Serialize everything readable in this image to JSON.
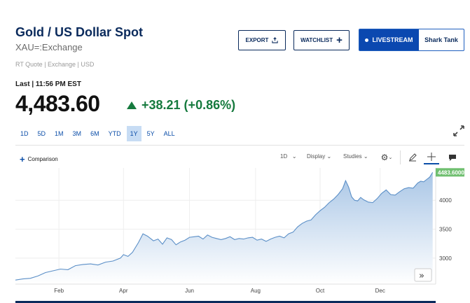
{
  "header": {
    "title": "Gold / US Dollar Spot",
    "subtitle": "XAU=:Exchange",
    "meta": "RT Quote | Exchange | USD"
  },
  "actions": {
    "export_label": "EXPORT",
    "watchlist_label": "WATCHLIST",
    "livestream_label": "LIVESTREAM",
    "show_label": "Shark Tank"
  },
  "quote": {
    "last_label": "Last | 11:56 PM EST",
    "price": "4,483.60",
    "change": "+38.21 (+0.86%)",
    "change_color": "#167a3e"
  },
  "ranges": [
    {
      "label": "1D",
      "active": false
    },
    {
      "label": "5D",
      "active": false
    },
    {
      "label": "1M",
      "active": false
    },
    {
      "label": "3M",
      "active": false
    },
    {
      "label": "6M",
      "active": false
    },
    {
      "label": "YTD",
      "active": false
    },
    {
      "label": "1Y",
      "active": true
    },
    {
      "label": "5Y",
      "active": false
    },
    {
      "label": "ALL",
      "active": false
    }
  ],
  "toolbar": {
    "comparison_label": "Comparison",
    "interval_label": "1D",
    "display_label": "Display",
    "studies_label": "Studies"
  },
  "chart_data": {
    "type": "area",
    "x_labels": [
      "Feb",
      "Apr",
      "Jun",
      "Aug",
      "Oct",
      "Dec"
    ],
    "y_ticks": [
      3000,
      3500,
      4000
    ],
    "ylim": [
      2550,
      4560
    ],
    "last_value_label": "4483.6000",
    "last_value": 4483.6,
    "line_color": "#5b8fc7",
    "fill_top": "#a9c6e6",
    "fill_bottom": "#ffffff",
    "badge_color": "#6fbf6f",
    "series": [
      {
        "x": 0,
        "y": 2620
      },
      {
        "x": 5,
        "y": 2640
      },
      {
        "x": 10,
        "y": 2650
      },
      {
        "x": 15,
        "y": 2690
      },
      {
        "x": 20,
        "y": 2750
      },
      {
        "x": 25,
        "y": 2780
      },
      {
        "x": 30,
        "y": 2810
      },
      {
        "x": 35,
        "y": 2800
      },
      {
        "x": 40,
        "y": 2870
      },
      {
        "x": 45,
        "y": 2890
      },
      {
        "x": 50,
        "y": 2900
      },
      {
        "x": 55,
        "y": 2880
      },
      {
        "x": 60,
        "y": 2930
      },
      {
        "x": 65,
        "y": 2950
      },
      {
        "x": 70,
        "y": 3000
      },
      {
        "x": 72,
        "y": 3060
      },
      {
        "x": 75,
        "y": 3030
      },
      {
        "x": 78,
        "y": 3100
      },
      {
        "x": 82,
        "y": 3270
      },
      {
        "x": 85,
        "y": 3420
      },
      {
        "x": 88,
        "y": 3380
      },
      {
        "x": 92,
        "y": 3300
      },
      {
        "x": 95,
        "y": 3330
      },
      {
        "x": 98,
        "y": 3240
      },
      {
        "x": 101,
        "y": 3350
      },
      {
        "x": 104,
        "y": 3320
      },
      {
        "x": 107,
        "y": 3230
      },
      {
        "x": 110,
        "y": 3280
      },
      {
        "x": 113,
        "y": 3310
      },
      {
        "x": 116,
        "y": 3360
      },
      {
        "x": 119,
        "y": 3370
      },
      {
        "x": 122,
        "y": 3380
      },
      {
        "x": 125,
        "y": 3330
      },
      {
        "x": 128,
        "y": 3400
      },
      {
        "x": 131,
        "y": 3360
      },
      {
        "x": 134,
        "y": 3340
      },
      {
        "x": 137,
        "y": 3320
      },
      {
        "x": 140,
        "y": 3340
      },
      {
        "x": 143,
        "y": 3370
      },
      {
        "x": 146,
        "y": 3320
      },
      {
        "x": 149,
        "y": 3340
      },
      {
        "x": 152,
        "y": 3330
      },
      {
        "x": 155,
        "y": 3350
      },
      {
        "x": 158,
        "y": 3360
      },
      {
        "x": 161,
        "y": 3310
      },
      {
        "x": 164,
        "y": 3330
      },
      {
        "x": 167,
        "y": 3290
      },
      {
        "x": 170,
        "y": 3330
      },
      {
        "x": 173,
        "y": 3360
      },
      {
        "x": 176,
        "y": 3380
      },
      {
        "x": 179,
        "y": 3350
      },
      {
        "x": 182,
        "y": 3420
      },
      {
        "x": 185,
        "y": 3450
      },
      {
        "x": 188,
        "y": 3540
      },
      {
        "x": 191,
        "y": 3600
      },
      {
        "x": 194,
        "y": 3640
      },
      {
        "x": 197,
        "y": 3660
      },
      {
        "x": 200,
        "y": 3750
      },
      {
        "x": 203,
        "y": 3820
      },
      {
        "x": 206,
        "y": 3880
      },
      {
        "x": 209,
        "y": 3960
      },
      {
        "x": 212,
        "y": 4020
      },
      {
        "x": 215,
        "y": 4100
      },
      {
        "x": 218,
        "y": 4200
      },
      {
        "x": 220,
        "y": 4340
      },
      {
        "x": 222,
        "y": 4230
      },
      {
        "x": 224,
        "y": 4060
      },
      {
        "x": 226,
        "y": 4000
      },
      {
        "x": 228,
        "y": 3990
      },
      {
        "x": 230,
        "y": 4050
      },
      {
        "x": 232,
        "y": 4010
      },
      {
        "x": 235,
        "y": 3970
      },
      {
        "x": 238,
        "y": 3960
      },
      {
        "x": 241,
        "y": 4030
      },
      {
        "x": 244,
        "y": 4120
      },
      {
        "x": 247,
        "y": 4180
      },
      {
        "x": 250,
        "y": 4100
      },
      {
        "x": 253,
        "y": 4090
      },
      {
        "x": 256,
        "y": 4150
      },
      {
        "x": 259,
        "y": 4200
      },
      {
        "x": 262,
        "y": 4220
      },
      {
        "x": 265,
        "y": 4210
      },
      {
        "x": 268,
        "y": 4300
      },
      {
        "x": 270,
        "y": 4330
      },
      {
        "x": 272,
        "y": 4320
      },
      {
        "x": 274,
        "y": 4360
      },
      {
        "x": 276,
        "y": 4400
      },
      {
        "x": 278,
        "y": 4483.6
      }
    ],
    "x_tick_positions": [
      29,
      72,
      116,
      160,
      203,
      243
    ],
    "x_max": 280
  }
}
